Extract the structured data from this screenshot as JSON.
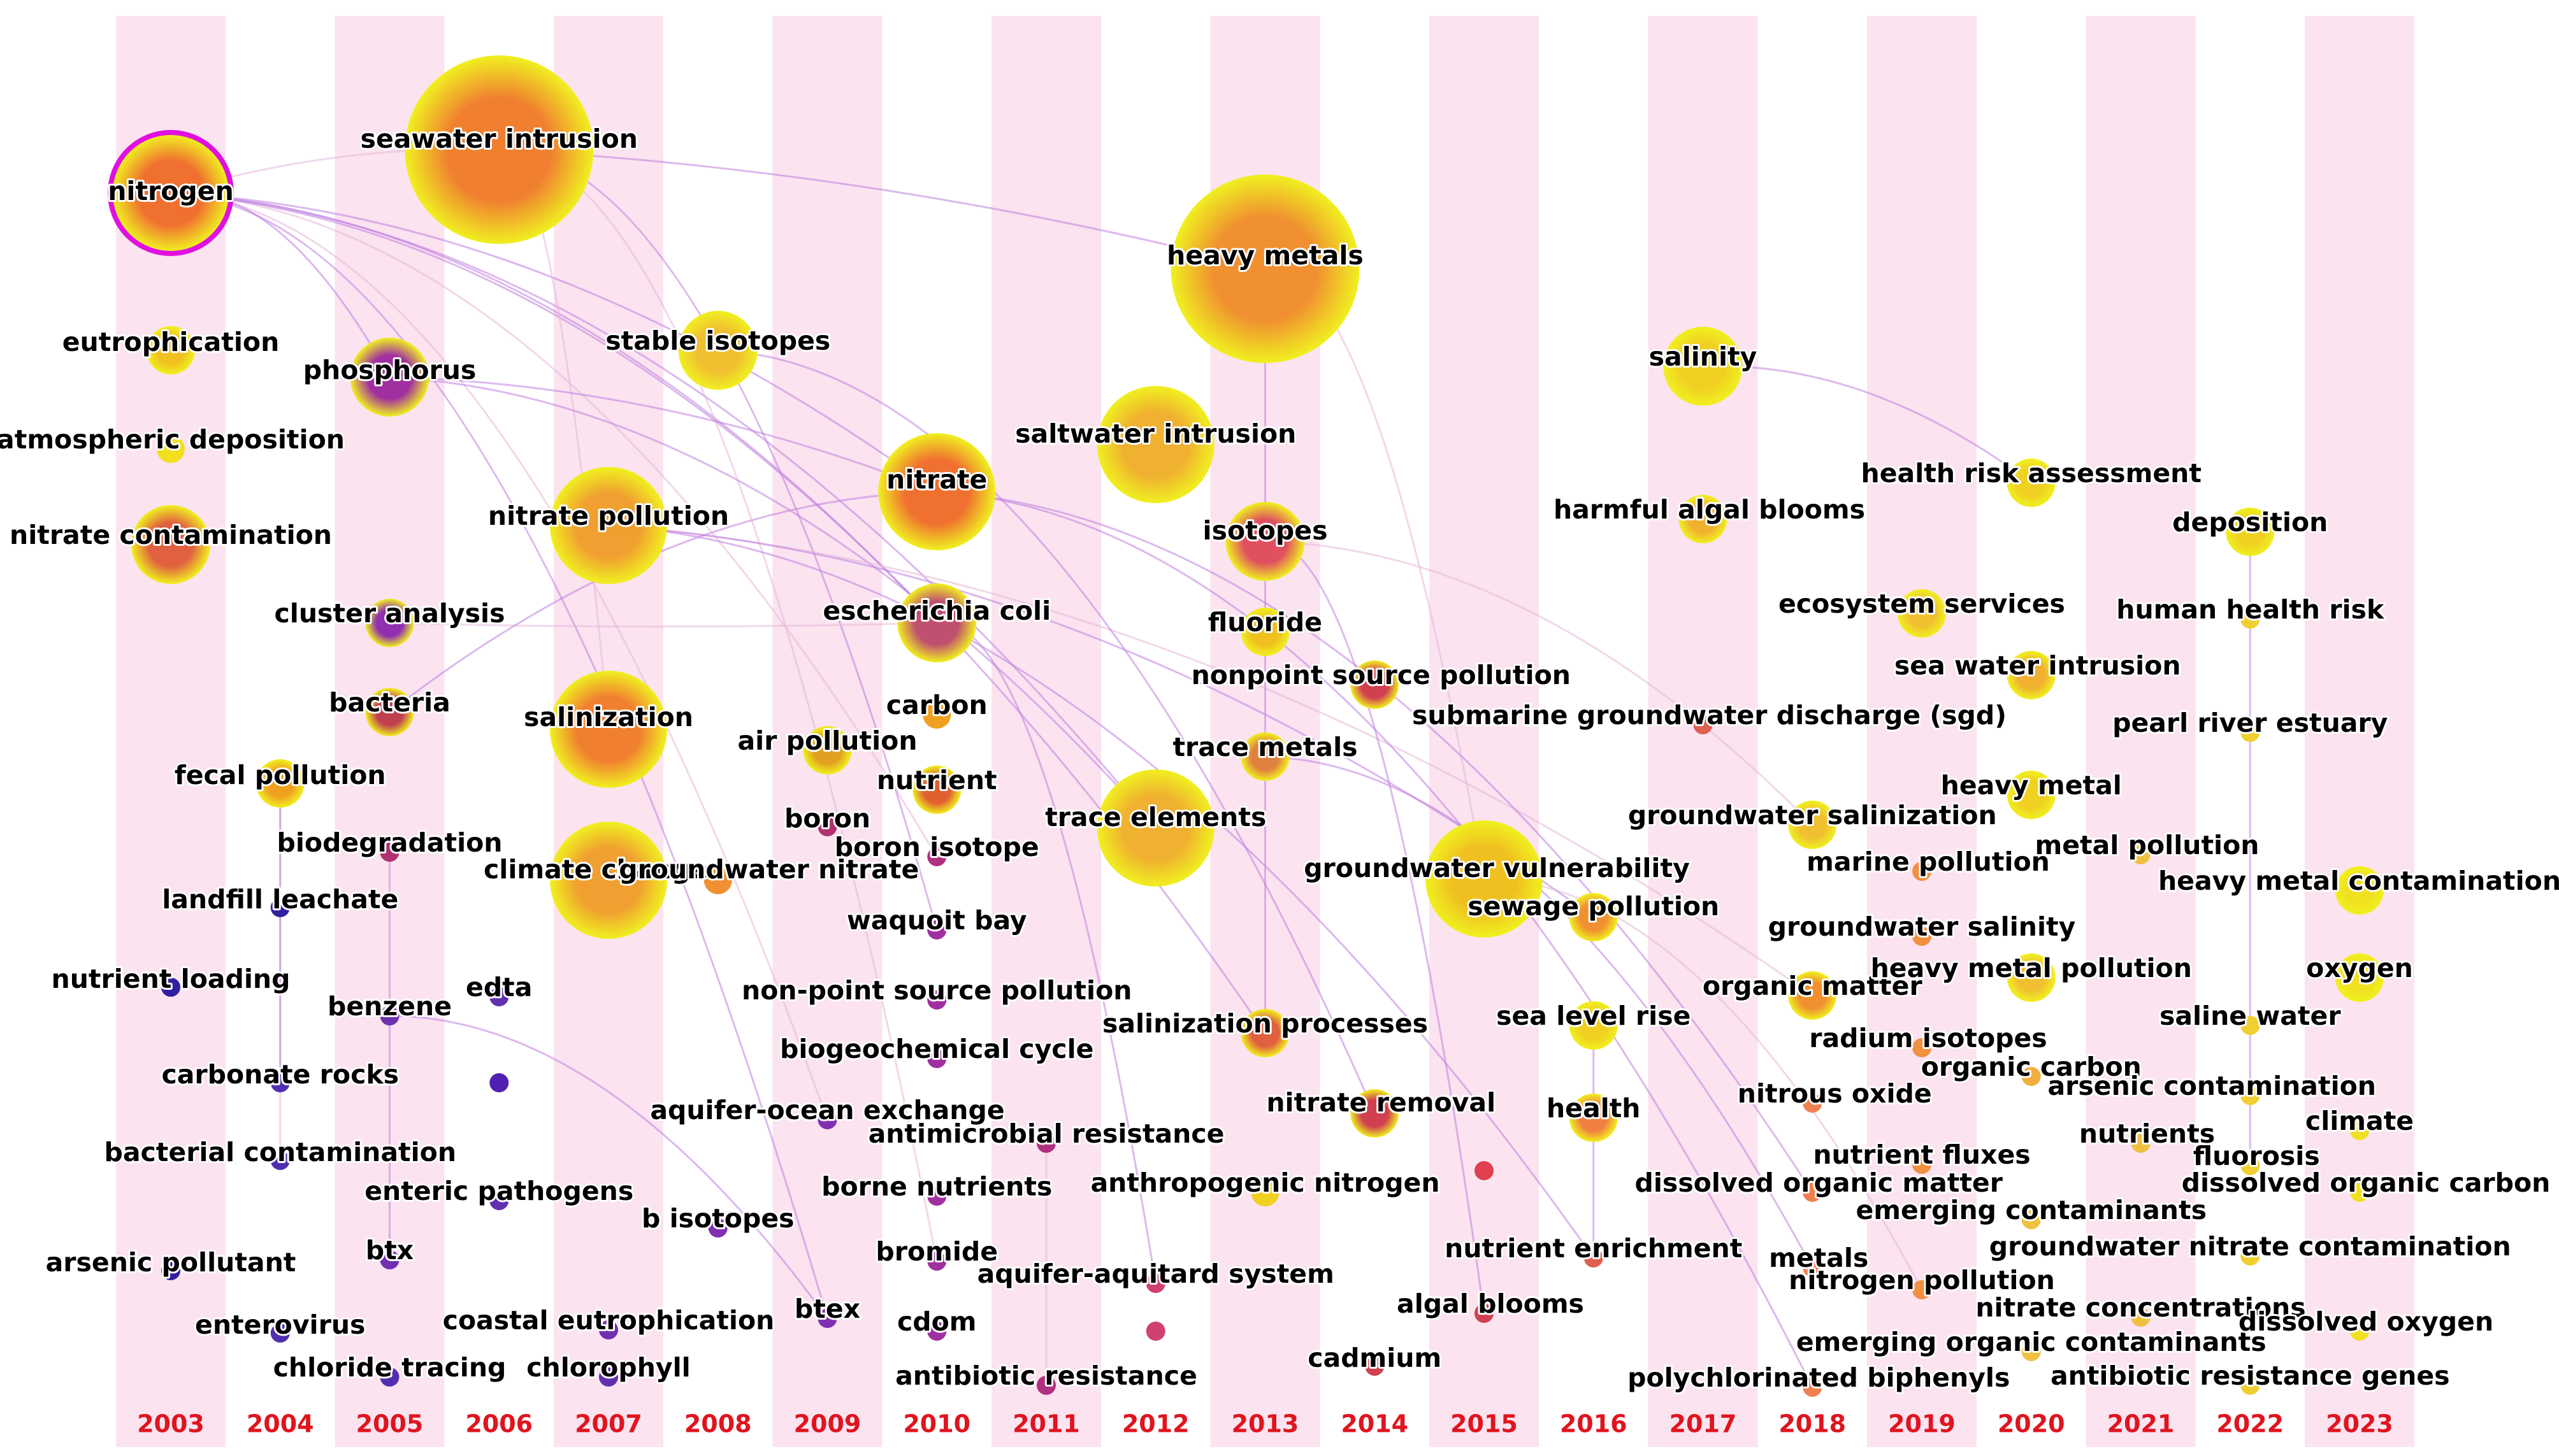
{
  "colors": {
    "stripe": "#fbe3f0",
    "year_label": "#e0141e",
    "label": "#000000",
    "ring_outer": "#f0f020",
    "ring_inner": "#e02070",
    "highlight": "#e010e0",
    "link": "#c080e0"
  },
  "years": [
    "2003",
    "2004",
    "2005",
    "2006",
    "2007",
    "2008",
    "2009",
    "2010",
    "2011",
    "2012",
    "2013",
    "2014",
    "2015",
    "2016",
    "2017",
    "2018",
    "2019",
    "2020",
    "2021",
    "2022",
    "2023"
  ],
  "keywords": [
    {
      "label": "nitrogen",
      "year": "2003",
      "size": "xl",
      "color": "#f07030",
      "highlight": true
    },
    {
      "label": "eutrophication",
      "year": "2003",
      "size": "m",
      "color": "#f0c020"
    },
    {
      "label": "atmospheric deposition",
      "year": "2003",
      "size": "s",
      "color": "#f0e020"
    },
    {
      "label": "nitrate contamination",
      "year": "2003",
      "size": "l",
      "color": "#e06040"
    },
    {
      "label": "fecal pollution",
      "year": "2004",
      "size": "m",
      "color": "#f0a020"
    },
    {
      "label": "landfill leachate",
      "year": "2004",
      "size": "xs",
      "color": "#3020a0"
    },
    {
      "label": "nutrient loading",
      "year": "2003",
      "size": "xs",
      "color": "#3020a0"
    },
    {
      "label": "carbonate rocks",
      "year": "2004",
      "size": "xs",
      "color": "#5030b0"
    },
    {
      "label": "bacterial contamination",
      "year": "2004",
      "size": "xs",
      "color": "#5030b0"
    },
    {
      "label": "arsenic pollutant",
      "year": "2003",
      "size": "xs",
      "color": "#3020a0"
    },
    {
      "label": "enterovirus",
      "year": "2004",
      "size": "xs",
      "color": "#5030b0"
    },
    {
      "label": "phosphorus",
      "year": "2005",
      "size": "l",
      "color": "#a030a0"
    },
    {
      "label": "cluster analysis",
      "year": "2005",
      "size": "m",
      "color": "#9030b0"
    },
    {
      "label": "bacteria",
      "year": "2005",
      "size": "m",
      "color": "#c04050"
    },
    {
      "label": "biodegradation",
      "year": "2005",
      "size": "xs",
      "color": "#b03070"
    },
    {
      "label": "benzene",
      "year": "2005",
      "size": "xs",
      "color": "#7030b0"
    },
    {
      "label": "enteric pathogens",
      "year": "2006",
      "size": "xs",
      "color": "#6030b0"
    },
    {
      "label": "btx",
      "year": "2005",
      "size": "xs",
      "color": "#7030b0"
    },
    {
      "label": "chloride tracing",
      "year": "2005",
      "size": "xs",
      "color": "#5030b0"
    },
    {
      "label": "edta",
      "year": "2006",
      "size": "xs",
      "color": "#6030b0"
    },
    {
      "label": "seawater intrusion",
      "year": "2006",
      "size": "xxl",
      "color": "#f08030"
    },
    {
      "label": "nitrate pollution",
      "year": "2007",
      "size": "xl",
      "color": "#f0a030"
    },
    {
      "label": "salinization",
      "year": "2007",
      "size": "xl",
      "color": "#f08030"
    },
    {
      "label": "climate change",
      "year": "2007",
      "size": "xl",
      "color": "#f0a030"
    },
    {
      "label": "coastal eutrophication",
      "year": "2007",
      "size": "xs",
      "color": "#7030b0"
    },
    {
      "label": "chlorophyll",
      "year": "2007",
      "size": "xs",
      "color": "#6030b0"
    },
    {
      "label": "stable isotopes",
      "year": "2008",
      "size": "l",
      "color": "#f0c030"
    },
    {
      "label": "groundwater nitrate",
      "year": "2008",
      "size": "s",
      "color": "#f09030"
    },
    {
      "label": "b isotopes",
      "year": "2008",
      "size": "xs",
      "color": "#8030b0"
    },
    {
      "label": "air pollution",
      "year": "2009",
      "size": "m",
      "color": "#e0a020"
    },
    {
      "label": "boron",
      "year": "2009",
      "size": "xs",
      "color": "#b03070"
    },
    {
      "label": "aquifer-ocean exchange",
      "year": "2009",
      "size": "xs",
      "color": "#8030b0"
    },
    {
      "label": "btex",
      "year": "2009",
      "size": "xs",
      "color": "#8030b0"
    },
    {
      "label": "nitrate",
      "year": "2010",
      "size": "xl",
      "color": "#f07030"
    },
    {
      "label": "escherichia coli",
      "year": "2010",
      "size": "l",
      "color": "#c05070"
    },
    {
      "label": "carbon",
      "year": "2010",
      "size": "s",
      "color": "#f0a020"
    },
    {
      "label": "nutrient",
      "year": "2010",
      "size": "m",
      "color": "#e06030"
    },
    {
      "label": "boron isotope",
      "year": "2010",
      "size": "xs",
      "color": "#b03080"
    },
    {
      "label": "waquoit bay",
      "year": "2010",
      "size": "xs",
      "color": "#a030a0"
    },
    {
      "label": "non-point source pollution",
      "year": "2010",
      "size": "xs",
      "color": "#a030a0"
    },
    {
      "label": "biogeochemical cycle",
      "year": "2010",
      "size": "xs",
      "color": "#a030a0"
    },
    {
      "label": "borne nutrients",
      "year": "2010",
      "size": "xs",
      "color": "#a030a0"
    },
    {
      "label": "bromide",
      "year": "2010",
      "size": "xs",
      "color": "#a030a0"
    },
    {
      "label": "cdom",
      "year": "2010",
      "size": "xs",
      "color": "#a030a0"
    },
    {
      "label": "antimicrobial resistance",
      "year": "2011",
      "size": "xs",
      "color": "#b03080"
    },
    {
      "label": "antibiotic resistance",
      "year": "2011",
      "size": "xs",
      "color": "#b03080"
    },
    {
      "label": "saltwater intrusion",
      "year": "2012",
      "size": "xl",
      "color": "#f0b030"
    },
    {
      "label": "trace elements",
      "year": "2012",
      "size": "xl",
      "color": "#f0b030"
    },
    {
      "label": "aquifer-aquitard system",
      "year": "2012",
      "size": "xs",
      "color": "#c03070"
    },
    {
      "label": "heavy metals",
      "year": "2013",
      "size": "xxl",
      "color": "#f09030"
    },
    {
      "label": "isotopes",
      "year": "2013",
      "size": "l",
      "color": "#e05060"
    },
    {
      "label": "fluoride",
      "year": "2013",
      "size": "m",
      "color": "#f0c020"
    },
    {
      "label": "trace metals",
      "year": "2013",
      "size": "m",
      "color": "#e08040"
    },
    {
      "label": "salinization processes",
      "year": "2013",
      "size": "m",
      "color": "#e06040"
    },
    {
      "label": "anthropogenic nitrogen",
      "year": "2013",
      "size": "s",
      "color": "#f0d020"
    },
    {
      "label": "nonpoint source pollution",
      "year": "2014",
      "size": "m",
      "color": "#d04050"
    },
    {
      "label": "nitrate removal",
      "year": "2014",
      "size": "m",
      "color": "#d04050"
    },
    {
      "label": "cadmium",
      "year": "2014",
      "size": "xs",
      "color": "#d04050"
    },
    {
      "label": "groundwater vulnerability",
      "year": "2015",
      "size": "xl",
      "color": "#f0c020"
    },
    {
      "label": "algal blooms",
      "year": "2015",
      "size": "xs",
      "color": "#d04050"
    },
    {
      "label": "sewage pollution",
      "year": "2016",
      "size": "m",
      "color": "#f09030"
    },
    {
      "label": "sea level rise",
      "year": "2016",
      "size": "m",
      "color": "#f0d020"
    },
    {
      "label": "health",
      "year": "2016",
      "size": "m",
      "color": "#f08040"
    },
    {
      "label": "nutrient enrichment",
      "year": "2016",
      "size": "xs",
      "color": "#e06050"
    },
    {
      "label": "salinity",
      "year": "2017",
      "size": "l",
      "color": "#f0d020"
    },
    {
      "label": "harmful algal blooms",
      "year": "2017",
      "size": "m",
      "color": "#f0b030"
    },
    {
      "label": "submarine groundwater discharge (sgd)",
      "year": "2017",
      "size": "xs",
      "color": "#e06050"
    },
    {
      "label": "groundwater salinization",
      "year": "2018",
      "size": "m",
      "color": "#f0c030"
    },
    {
      "label": "organic matter",
      "year": "2018",
      "size": "m",
      "color": "#f09030"
    },
    {
      "label": "nitrous oxide",
      "year": "2018",
      "size": "xs",
      "color": "#f08050"
    },
    {
      "label": "dissolved organic matter",
      "year": "2018",
      "size": "xs",
      "color": "#f08050"
    },
    {
      "label": "metals",
      "year": "2018",
      "size": "xs",
      "color": "#f08050"
    },
    {
      "label": "polychlorinated biphenyls",
      "year": "2018",
      "size": "xs",
      "color": "#f08050"
    },
    {
      "label": "ecosystem services",
      "year": "2019",
      "size": "m",
      "color": "#f0c030"
    },
    {
      "label": "marine pollution",
      "year": "2019",
      "size": "xs",
      "color": "#f09040"
    },
    {
      "label": "groundwater salinity",
      "year": "2019",
      "size": "xs",
      "color": "#f09040"
    },
    {
      "label": "radium isotopes",
      "year": "2019",
      "size": "xs",
      "color": "#f09040"
    },
    {
      "label": "nutrient fluxes",
      "year": "2019",
      "size": "xs",
      "color": "#f09040"
    },
    {
      "label": "nitrogen pollution",
      "year": "2019",
      "size": "xs",
      "color": "#f09040"
    },
    {
      "label": "health risk assessment",
      "year": "2020",
      "size": "m",
      "color": "#f0d020"
    },
    {
      "label": "sea water intrusion",
      "year": "2020",
      "size": "m",
      "color": "#f0b030"
    },
    {
      "label": "heavy metal",
      "year": "2020",
      "size": "m",
      "color": "#f0d020"
    },
    {
      "label": "heavy metal pollution",
      "year": "2020",
      "size": "m",
      "color": "#f0c030"
    },
    {
      "label": "organic carbon",
      "year": "2020",
      "size": "xs",
      "color": "#f0b040"
    },
    {
      "label": "emerging contaminants",
      "year": "2020",
      "size": "xs",
      "color": "#f0c040"
    },
    {
      "label": "emerging organic contaminants",
      "year": "2020",
      "size": "xs",
      "color": "#f0c040"
    },
    {
      "label": "metal pollution",
      "year": "2021",
      "size": "xs",
      "color": "#f0c040"
    },
    {
      "label": "nutrients",
      "year": "2021",
      "size": "xs",
      "color": "#f0c040"
    },
    {
      "label": "nitrate concentrations",
      "year": "2021",
      "size": "xs",
      "color": "#f0c040"
    },
    {
      "label": "deposition",
      "year": "2022",
      "size": "m",
      "color": "#f0d020"
    },
    {
      "label": "human health risk",
      "year": "2022",
      "size": "xs",
      "color": "#f0d030"
    },
    {
      "label": "pearl river estuary",
      "year": "2022",
      "size": "xs",
      "color": "#f0d030"
    },
    {
      "label": "saline water",
      "year": "2022",
      "size": "xs",
      "color": "#f0d030"
    },
    {
      "label": "arsenic contamination",
      "year": "2022",
      "size": "xs",
      "color": "#f0d030"
    },
    {
      "label": "fluorosis",
      "year": "2022",
      "size": "xs",
      "color": "#f0d030"
    },
    {
      "label": "groundwater nitrate contamination",
      "year": "2022",
      "size": "xs",
      "color": "#f0d030"
    },
    {
      "label": "antibiotic resistance genes",
      "year": "2022",
      "size": "xs",
      "color": "#f0d030"
    },
    {
      "label": "heavy metal contamination",
      "year": "2023",
      "size": "m",
      "color": "#f0e020"
    },
    {
      "label": "oxygen",
      "year": "2023",
      "size": "m",
      "color": "#f0e020"
    },
    {
      "label": "climate",
      "year": "2023",
      "size": "xs",
      "color": "#f0e020"
    },
    {
      "label": "dissolved organic carbon",
      "year": "2023",
      "size": "xs",
      "color": "#f0e020"
    },
    {
      "label": "dissolved oxygen",
      "year": "2023",
      "size": "xs",
      "color": "#f0e020"
    }
  ],
  "unlabeled_nodes": [
    {
      "year": "2006",
      "size": "xs",
      "color": "#5020b0"
    },
    {
      "year": "2012",
      "size": "xs",
      "color": "#d04070"
    },
    {
      "year": "2012",
      "size": "xs",
      "color": "#d04070"
    },
    {
      "year": "2015",
      "size": "xs",
      "color": "#e04050"
    }
  ],
  "links": [
    [
      "nitrogen",
      "seawater intrusion"
    ],
    [
      "nitrogen",
      "nitrate"
    ],
    [
      "nitrogen",
      "escherichia coli"
    ],
    [
      "nitrogen",
      "boron isotope"
    ],
    [
      "nitrogen",
      "salinization processes"
    ],
    [
      "nitrogen",
      "trace elements"
    ],
    [
      "nitrogen",
      "aquifer-ocean exchange"
    ],
    [
      "nitrogen",
      "btex"
    ],
    [
      "nitrogen",
      "phosphorus"
    ],
    [
      "seawater intrusion",
      "salinization"
    ],
    [
      "seawater intrusion",
      "heavy metals"
    ],
    [
      "seawater intrusion",
      "waquoit bay"
    ],
    [
      "seawater intrusion",
      "bromide"
    ],
    [
      "phosphorus",
      "nitrate"
    ],
    [
      "phosphorus",
      "trace elements"
    ],
    [
      "nitrate pollution",
      "organic matter"
    ],
    [
      "nitrate pollution",
      "nutrient enrichment"
    ],
    [
      "nitrate pollution",
      "sewage pollution"
    ],
    [
      "cluster analysis",
      "escherichia coli"
    ],
    [
      "bacteria",
      "nitrate"
    ],
    [
      "heavy metals",
      "salinization processes"
    ],
    [
      "heavy metals",
      "groundwater vulnerability"
    ],
    [
      "salinity",
      "health risk assessment"
    ],
    [
      "isotopes",
      "algal blooms"
    ],
    [
      "isotopes",
      "groundwater salinization"
    ],
    [
      "trace metals",
      "metals"
    ],
    [
      "nitrate",
      "polychlorinated biphenyls"
    ],
    [
      "fecal pollution",
      "bacterial contamination"
    ],
    [
      "fecal pollution",
      "carbonate rocks"
    ],
    [
      "biodegradation",
      "btx"
    ],
    [
      "biodegradation",
      "benzene"
    ],
    [
      "benzene",
      "btex"
    ],
    [
      "escherichia coli",
      "aquifer-aquitard system"
    ],
    [
      "groundwater vulnerability",
      "nitrogen pollution"
    ],
    [
      "sea level rise",
      "nutrient enrichment"
    ],
    [
      "deposition",
      "fluorosis"
    ],
    [
      "antimicrobial resistance",
      "antibiotic resistance"
    ],
    [
      "stable isotopes",
      "nitrate removal"
    ],
    [
      "nitrate",
      "dissolved organic matter"
    ]
  ]
}
